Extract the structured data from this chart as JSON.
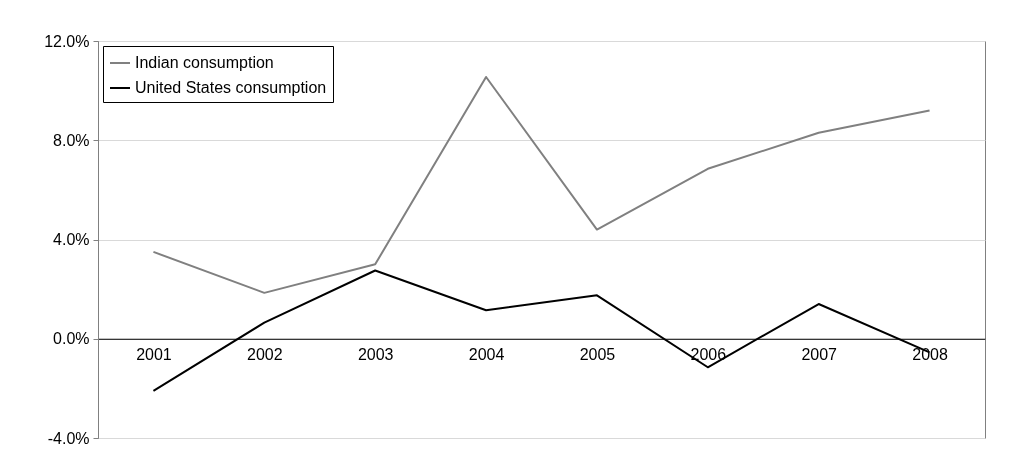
{
  "chart_data": {
    "type": "line",
    "categories": [
      "2001",
      "2002",
      "2003",
      "2004",
      "2005",
      "2006",
      "2007",
      "2008"
    ],
    "series": [
      {
        "name": "Indian consumption",
        "color": "#808080",
        "values": [
          3.5,
          1.85,
          3.0,
          10.55,
          4.4,
          6.85,
          8.3,
          9.2
        ]
      },
      {
        "name": "United States consumption",
        "color": "#000000",
        "values": [
          -2.1,
          0.65,
          2.75,
          1.15,
          1.75,
          -1.15,
          1.4,
          -0.55
        ]
      }
    ],
    "ylim": [
      -4,
      12
    ],
    "yticks": [
      {
        "value": -4,
        "label": "-4.0%"
      },
      {
        "value": 0,
        "label": "0.0%"
      },
      {
        "value": 4,
        "label": "4.0%"
      },
      {
        "value": 8,
        "label": "8.0%"
      },
      {
        "value": 12,
        "label": "12.0%"
      }
    ],
    "grid": "y",
    "legend": "top left",
    "marker": "none",
    "line_style": "solid"
  }
}
